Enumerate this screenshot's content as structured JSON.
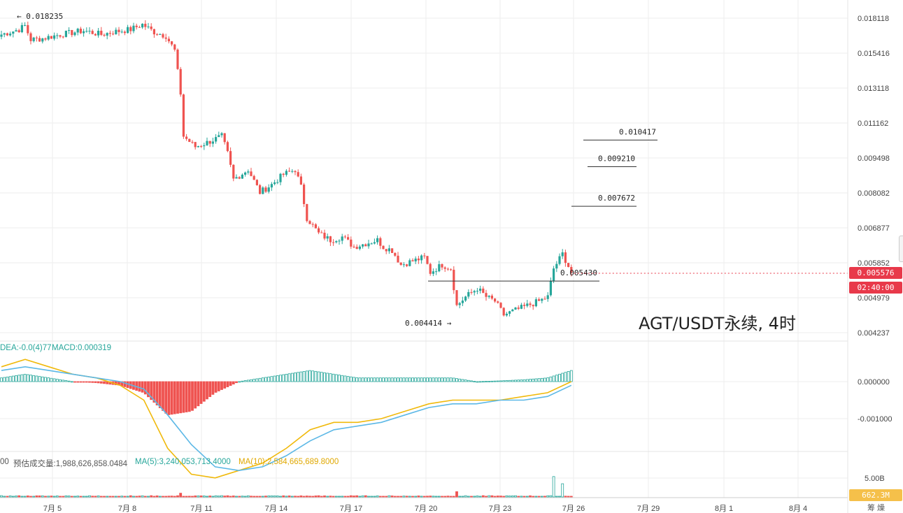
{
  "title": "AGT/USDT永续, 4时",
  "colors": {
    "up": "#26a69a",
    "down": "#ef5350",
    "dif": "#f0b90b",
    "dea": "#5cb8e6",
    "grid": "#eeeeee",
    "price_tag": "#e8394a",
    "vol_tag": "#f0b90b"
  },
  "price_axis": {
    "ticks": [
      "0.018118",
      "0.015416",
      "0.013118",
      "0.011162",
      "0.009498",
      "0.008082",
      "0.006877",
      "0.005852",
      "0.004979",
      "0.004237"
    ]
  },
  "macd_axis": {
    "ticks": [
      "0.000000",
      "-0.001000"
    ]
  },
  "volume_axis": {
    "ticks": [
      "5.00B"
    ]
  },
  "time_axis": {
    "ticks": [
      "7月 5",
      "7月 8",
      "7月 11",
      "7月 14",
      "7月 17",
      "7月 20",
      "7月 23",
      "7月 26",
      "7月 29",
      "8月 1",
      "8月 4"
    ]
  },
  "markers": {
    "high": "← 0.018235",
    "low": "0.004414 →"
  },
  "current": {
    "price": "0.005576",
    "countdown": "02:40:00",
    "volume": "662.3M"
  },
  "macd_header": {
    "dea": "DEA:-0.0(4)77",
    "macd": "MACD:0.000319"
  },
  "volume_header": {
    "prefix": "00",
    "estimate": "预估成交量:1,988,626,858.0484",
    "ma5": "MA(5):3,240,053,713.4000",
    "ma10": "MA(10):2,584,665,689.8000"
  },
  "corner_label": "筹 燥",
  "chart_data": [
    {
      "type": "candlestick",
      "title": "AGT/USDT永续, 4时",
      "y_scale": "log",
      "ylim": [
        0.0039,
        0.0195
      ],
      "x_labels": [
        "7月 5",
        "7月 8",
        "7月 11",
        "7月 14",
        "7月 17",
        "7月 20",
        "7月 23",
        "7月 26",
        "7月 29",
        "8月 1",
        "8月 4"
      ],
      "grid": true,
      "close_path": [
        [
          0,
          0.0168
        ],
        [
          6,
          0.0172
        ],
        [
          8,
          0.0175
        ],
        [
          10,
          0.0164
        ],
        [
          14,
          0.0165
        ],
        [
          20,
          0.0168
        ],
        [
          28,
          0.0171
        ],
        [
          34,
          0.0168
        ],
        [
          38,
          0.017
        ],
        [
          44,
          0.0172
        ],
        [
          48,
          0.0176
        ],
        [
          52,
          0.017
        ],
        [
          56,
          0.0167
        ],
        [
          59,
          0.0156
        ],
        [
          61,
          0.0128
        ],
        [
          62,
          0.0105
        ],
        [
          66,
          0.01
        ],
        [
          70,
          0.0102
        ],
        [
          75,
          0.0105
        ],
        [
          77,
          0.0097
        ],
        [
          79,
          0.0086
        ],
        [
          84,
          0.009
        ],
        [
          88,
          0.0081
        ],
        [
          92,
          0.0084
        ],
        [
          96,
          0.0088
        ],
        [
          100,
          0.009
        ],
        [
          102,
          0.0083
        ],
        [
          104,
          0.0072
        ],
        [
          108,
          0.0067
        ],
        [
          112,
          0.0065
        ],
        [
          116,
          0.0066
        ],
        [
          120,
          0.0063
        ],
        [
          124,
          0.0064
        ],
        [
          128,
          0.0065
        ],
        [
          130,
          0.0063
        ],
        [
          133,
          0.0062
        ],
        [
          136,
          0.0058
        ],
        [
          140,
          0.0059
        ],
        [
          144,
          0.006
        ],
        [
          146,
          0.0056
        ],
        [
          150,
          0.0058
        ],
        [
          153,
          0.0057
        ],
        [
          155,
          0.0048
        ],
        [
          158,
          0.005
        ],
        [
          162,
          0.0052
        ],
        [
          165,
          0.005
        ],
        [
          168,
          0.0049
        ],
        [
          171,
          0.0046
        ],
        [
          175,
          0.0047
        ],
        [
          179,
          0.0048
        ],
        [
          183,
          0.0049
        ],
        [
          186,
          0.005
        ],
        [
          188,
          0.0057
        ],
        [
          191,
          0.0061
        ],
        [
          194,
          0.0056
        ]
      ],
      "annotations": [
        {
          "text": "0.018235",
          "value": 0.018235,
          "type": "high"
        },
        {
          "text": "0.004414",
          "value": 0.004414,
          "type": "low"
        },
        {
          "text": "0.010417",
          "value": 0.010417,
          "type": "level"
        },
        {
          "text": "0.009210",
          "value": 0.00921,
          "type": "level"
        },
        {
          "text": "0.007672",
          "value": 0.007672,
          "type": "level"
        },
        {
          "text": "0.005430",
          "value": 0.00543,
          "type": "level"
        }
      ],
      "last_price": 0.005576
    },
    {
      "type": "line",
      "name": "MACD",
      "series": [
        {
          "name": "DIF",
          "values": [
            0.0004,
            0.0006,
            0.0004,
            0.0002,
            0.0001,
            -0.0001,
            -0.0005,
            -0.0018,
            -0.0025,
            -0.0026,
            -0.0024,
            -0.0022,
            -0.0018,
            -0.0013,
            -0.0011,
            -0.0011,
            -0.001,
            -0.0008,
            -0.0006,
            -0.0005,
            -0.0005,
            -0.0005,
            -0.0004,
            -0.0003,
            0.0
          ]
        },
        {
          "name": "DEA",
          "values": [
            0.0003,
            0.0004,
            0.0003,
            0.0002,
            0.0001,
            0.0,
            -0.0002,
            -0.0009,
            -0.0017,
            -0.0023,
            -0.0024,
            -0.0023,
            -0.002,
            -0.0016,
            -0.0013,
            -0.0012,
            -0.0011,
            -0.0009,
            -0.0007,
            -0.0006,
            -0.0006,
            -0.0005,
            -0.0005,
            -0.0004,
            -0.0001
          ]
        },
        {
          "name": "MACD",
          "values": [
            0.0001,
            0.0002,
            0.0001,
            0.0,
            -3e-05,
            -0.0001,
            -0.0003,
            -0.0009,
            -0.0008,
            -0.0003,
            0.0,
            0.0001,
            0.0002,
            0.0003,
            0.0002,
            0.0001,
            0.0001,
            0.0001,
            0.0001,
            0.0001,
            0.0,
            2e-05,
            5e-05,
            0.0001,
            0.0003
          ]
        }
      ],
      "ylim": [
        -0.0028,
        0.0008
      ]
    },
    {
      "type": "bar",
      "name": "Volume",
      "y_ticks": [
        "5.00B"
      ],
      "spikes": [
        {
          "x": 61,
          "value": 1.0
        },
        {
          "x": 155,
          "value": 1.4
        },
        {
          "x": 188,
          "value": 5.4
        },
        {
          "x": 191,
          "value": 3.5
        }
      ],
      "unit": "B"
    }
  ]
}
